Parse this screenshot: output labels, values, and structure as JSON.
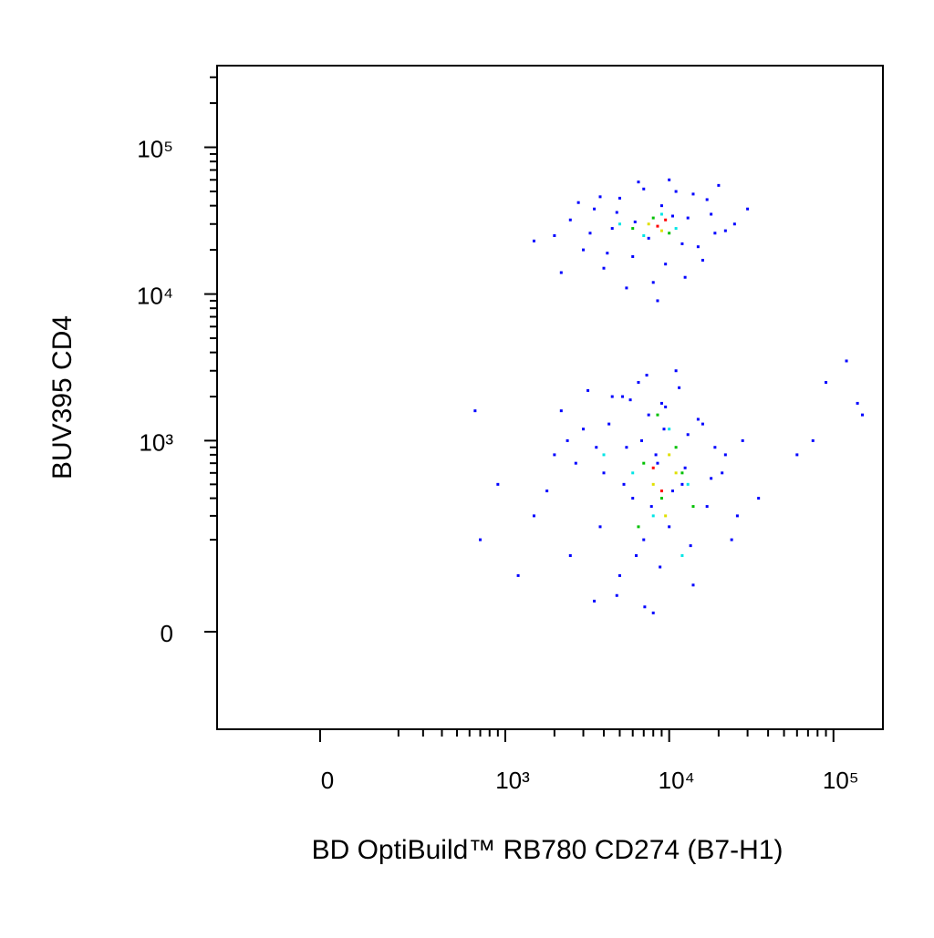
{
  "chart_data": {
    "type": "scatter",
    "xlabel": "BD OptiBuild™ RB780 CD274 (B7-H1)",
    "ylabel": "BUV395 CD4",
    "xscale": "biexponential",
    "yscale": "biexponential",
    "xlim": [
      -300,
      200000
    ],
    "ylim": [
      -220,
      360000
    ],
    "xticks": [
      0,
      {
        "value": 1000,
        "label": "10³"
      },
      {
        "value": 10000,
        "label": "10⁴"
      },
      {
        "value": 100000,
        "label": "10⁵"
      }
    ],
    "yticks": [
      0,
      {
        "value": 1000,
        "label": "10³"
      },
      {
        "value": 10000,
        "label": "10⁴"
      },
      {
        "value": 100000,
        "label": "10⁵"
      }
    ],
    "xminorticks": [
      200,
      300,
      400,
      500,
      600,
      700,
      800,
      900,
      2000,
      3000,
      4000,
      5000,
      6000,
      7000,
      8000,
      9000,
      20000,
      30000,
      40000,
      50000,
      60000,
      70000,
      80000,
      90000
    ],
    "yminorticks": [
      200,
      300,
      400,
      500,
      600,
      700,
      800,
      900,
      2000,
      3000,
      4000,
      5000,
      6000,
      7000,
      8000,
      9000,
      20000,
      30000,
      40000,
      50000,
      60000,
      70000,
      80000,
      90000,
      200000,
      300000
    ],
    "series": [
      {
        "color": "#0000ff",
        "x": [
          2000,
          2500,
          3000,
          3500,
          4000,
          4500,
          5000,
          6000,
          7000,
          8000,
          9000,
          10000,
          12000,
          14000,
          16000,
          18000,
          20000,
          25000,
          2200,
          2800,
          3300,
          4200,
          5500,
          6500,
          7500,
          9500,
          11000,
          13000,
          15000,
          17000,
          22000,
          1500,
          30000,
          4800,
          6200,
          8500,
          12500,
          19000,
          3800,
          10500,
          1500,
          2000,
          2500,
          3000,
          3500,
          4000,
          4500,
          5000,
          5500,
          6000,
          6500,
          7000,
          7500,
          8000,
          8500,
          9000,
          10000,
          11000,
          12000,
          13000,
          14000,
          15000,
          17000,
          19000,
          21000,
          24000,
          28000,
          35000,
          1200,
          1800,
          2200,
          2700,
          3200,
          3800,
          4300,
          4800,
          5300,
          5800,
          6300,
          6800,
          7300,
          7800,
          8300,
          8800,
          9500,
          10500,
          11500,
          12500,
          13500,
          16000,
          18000,
          22000,
          26000,
          900,
          700,
          2400,
          3600,
          5200,
          7100,
          9300,
          90000,
          120000,
          140000,
          150000,
          60000,
          75000,
          650
        ],
        "values": [
          25000,
          32000,
          20000,
          38000,
          15000,
          28000,
          45000,
          18000,
          52000,
          12000,
          40000,
          60000,
          22000,
          48000,
          17000,
          35000,
          55000,
          30000,
          14000,
          42000,
          26000,
          19000,
          11000,
          58000,
          24000,
          16000,
          50000,
          33000,
          21000,
          44000,
          27000,
          23000,
          38000,
          36000,
          31000,
          9000,
          13000,
          26000,
          46000,
          34000,
          300,
          800,
          150,
          1200,
          50,
          600,
          2000,
          100,
          900,
          400,
          2500,
          200,
          1500,
          30,
          700,
          1800,
          250,
          3000,
          500,
          1100,
          80,
          1400,
          350,
          900,
          600,
          200,
          1000,
          400,
          100,
          450,
          1600,
          700,
          2200,
          250,
          1300,
          60,
          500,
          1900,
          150,
          1000,
          2800,
          350,
          800,
          120,
          1700,
          450,
          2300,
          650,
          180,
          1300,
          550,
          800,
          300,
          500,
          200,
          1000,
          900,
          2000,
          40,
          1200,
          2500,
          3500,
          1800,
          1500,
          800,
          1000,
          1600
        ]
      },
      {
        "color": "#00e5e5",
        "x": [
          5000,
          7000,
          9000,
          11000,
          6000,
          8000,
          10000,
          13000,
          4000,
          12000
        ],
        "values": [
          30000,
          25000,
          35000,
          28000,
          600,
          300,
          1200,
          500,
          800,
          150
        ]
      },
      {
        "color": "#00c000",
        "x": [
          6000,
          8000,
          10000,
          7000,
          9000,
          11000,
          6500,
          8500,
          12000,
          14000
        ],
        "values": [
          28000,
          33000,
          26000,
          700,
          400,
          900,
          250,
          1500,
          600,
          350
        ]
      },
      {
        "color": "#e0e000",
        "x": [
          7500,
          9000,
          8000,
          10000,
          9500,
          11000
        ],
        "values": [
          30000,
          27000,
          500,
          800,
          300,
          600
        ]
      },
      {
        "color": "#ff0000",
        "x": [
          8500,
          9500,
          8000,
          9000
        ],
        "values": [
          29000,
          32000,
          650,
          450
        ]
      }
    ]
  }
}
